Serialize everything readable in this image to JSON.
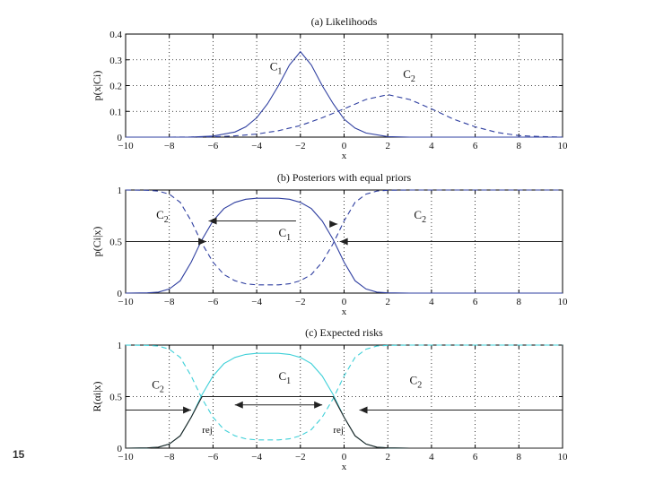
{
  "slide_number": "15",
  "chart_data": [
    {
      "type": "line",
      "title": "(a) Likelihoods",
      "xlabel": "x",
      "ylabel": "p(x|Ci)",
      "xlim": [
        -10,
        10
      ],
      "ylim": [
        0,
        0.4
      ],
      "xticks": [
        "−10",
        "−8",
        "−6",
        "−4",
        "−2",
        "0",
        "2",
        "4",
        "6",
        "8",
        "10"
      ],
      "yticks": [
        "0",
        "0.1",
        "0.2",
        "0.3",
        "0.4"
      ],
      "grid": true,
      "series": [
        {
          "name": "C1",
          "style": "solid",
          "color": "#2f3fa0",
          "x": [
            -10,
            -9,
            -8,
            -7,
            -6,
            -5,
            -4.5,
            -4,
            -3.5,
            -3,
            -2.5,
            -2,
            -1.5,
            -1,
            -0.5,
            0,
            0.5,
            1,
            2,
            3,
            4,
            5,
            6,
            7,
            8,
            9,
            10
          ],
          "y": [
            0,
            0,
            0,
            0.0005,
            0.004,
            0.02,
            0.04,
            0.075,
            0.13,
            0.2,
            0.28,
            0.332,
            0.28,
            0.2,
            0.13,
            0.07,
            0.035,
            0.016,
            0.002,
            0,
            0,
            0,
            0,
            0,
            0,
            0,
            0
          ]
        },
        {
          "name": "C2",
          "style": "dashed",
          "color": "#2f3fa0",
          "x": [
            -10,
            -8,
            -6,
            -5,
            -4,
            -3,
            -2,
            -1,
            0,
            1,
            2,
            3,
            4,
            5,
            6,
            7,
            8,
            9,
            10
          ],
          "y": [
            0,
            0,
            0.001,
            0.005,
            0.012,
            0.025,
            0.045,
            0.075,
            0.11,
            0.146,
            0.165,
            0.146,
            0.11,
            0.07,
            0.04,
            0.018,
            0.006,
            0.002,
            0
          ]
        }
      ],
      "labels": [
        {
          "text": "C1",
          "x": -3.4,
          "y": 0.26
        },
        {
          "text": "C2",
          "x": 2.7,
          "y": 0.23
        }
      ]
    },
    {
      "type": "line",
      "title": "(b) Posteriors with equal priors",
      "xlabel": "x",
      "ylabel": "p(Ci|x)",
      "xlim": [
        -10,
        10
      ],
      "ylim": [
        0,
        1
      ],
      "xticks": [
        "−10",
        "−8",
        "−6",
        "−4",
        "−2",
        "0",
        "2",
        "4",
        "6",
        "8",
        "10"
      ],
      "yticks": [
        "0",
        "0.5",
        "1"
      ],
      "grid": true,
      "series": [
        {
          "name": "C1",
          "style": "solid",
          "color": "#2f3fa0",
          "x": [
            -10,
            -9,
            -8.5,
            -8,
            -7.5,
            -7,
            -6.5,
            -6,
            -5.5,
            -5,
            -4.5,
            -4,
            -3.5,
            -3,
            -2.5,
            -2,
            -1.5,
            -1,
            -0.5,
            0,
            0.5,
            1,
            1.5,
            2,
            3,
            4,
            6,
            8,
            10
          ],
          "y": [
            0,
            0.003,
            0.01,
            0.04,
            0.12,
            0.3,
            0.52,
            0.7,
            0.82,
            0.88,
            0.91,
            0.92,
            0.92,
            0.92,
            0.91,
            0.88,
            0.82,
            0.7,
            0.52,
            0.3,
            0.12,
            0.04,
            0.01,
            0.003,
            0,
            0,
            0,
            0,
            0
          ]
        },
        {
          "name": "C2",
          "style": "dashed",
          "color": "#2f3fa0",
          "x": [
            -10,
            -9,
            -8.5,
            -8,
            -7.5,
            -7,
            -6.5,
            -6,
            -5.5,
            -5,
            -4.5,
            -4,
            -3.5,
            -3,
            -2.5,
            -2,
            -1.5,
            -1,
            -0.5,
            0,
            0.5,
            1,
            1.5,
            2,
            3,
            4,
            6,
            8,
            10
          ],
          "y": [
            1,
            0.997,
            0.99,
            0.96,
            0.88,
            0.7,
            0.48,
            0.3,
            0.18,
            0.12,
            0.09,
            0.08,
            0.08,
            0.08,
            0.09,
            0.12,
            0.18,
            0.3,
            0.48,
            0.7,
            0.88,
            0.96,
            0.99,
            0.997,
            1,
            1,
            1,
            1,
            1
          ]
        }
      ],
      "labels": [
        {
          "text": "C2",
          "x": -8.6,
          "y": 0.72
        },
        {
          "text": "C1",
          "x": -3.0,
          "y": 0.55
        },
        {
          "text": "C2",
          "x": 3.2,
          "y": 0.72
        }
      ]
    },
    {
      "type": "line",
      "title": "(c) Expected risks",
      "xlabel": "x",
      "ylabel": "R(αi|x)",
      "xlim": [
        -10,
        10
      ],
      "ylim": [
        0,
        1
      ],
      "xticks": [
        "−10",
        "−8",
        "−6",
        "−4",
        "−2",
        "0",
        "2",
        "4",
        "6",
        "8",
        "10"
      ],
      "yticks": [
        "0",
        "0.5",
        "1"
      ],
      "grid": true,
      "series": [
        {
          "name": "C1",
          "style": "dashed",
          "color": "#3fd0d8",
          "x": [
            -10,
            -9,
            -8.5,
            -8,
            -7.5,
            -7,
            -6.5,
            -6,
            -5.5,
            -5,
            -4.5,
            -4,
            -3.5,
            -3,
            -2.5,
            -2,
            -1.5,
            -1,
            -0.5,
            0,
            0.5,
            1,
            1.5,
            2,
            3,
            4,
            6,
            8,
            10
          ],
          "y": [
            1,
            0.997,
            0.99,
            0.96,
            0.88,
            0.7,
            0.48,
            0.3,
            0.18,
            0.12,
            0.09,
            0.08,
            0.08,
            0.08,
            0.09,
            0.12,
            0.18,
            0.3,
            0.48,
            0.7,
            0.88,
            0.96,
            0.99,
            0.997,
            1,
            1,
            1,
            1,
            1
          ]
        },
        {
          "name": "C2",
          "style": "solid",
          "color": "#3fd0d8",
          "x": [
            -10,
            -9,
            -8.5,
            -8,
            -7.5,
            -7,
            -6.5,
            -6,
            -5.5,
            -5,
            -4.5,
            -4,
            -3.5,
            -3,
            -2.5,
            -2,
            -1.5,
            -1,
            -0.5,
            0,
            0.5,
            1,
            1.5,
            2,
            3,
            4,
            6,
            8,
            10
          ],
          "y": [
            0,
            0.003,
            0.01,
            0.04,
            0.12,
            0.3,
            0.52,
            0.7,
            0.82,
            0.88,
            0.91,
            0.92,
            0.92,
            0.92,
            0.91,
            0.88,
            0.82,
            0.7,
            0.52,
            0.3,
            0.12,
            0.04,
            0.01,
            0.003,
            0,
            0,
            0,
            0,
            0
          ]
        },
        {
          "name": "rej",
          "style": "solid",
          "color": "#222222",
          "x": [
            -10,
            -9,
            -8.5,
            -8,
            -7.5,
            -7,
            -6.5,
            -6,
            -5.5,
            -5,
            -4.5,
            -4,
            -3.5,
            -3,
            -2.5,
            -2,
            -1.5,
            -1,
            -0.5,
            0,
            0.5,
            1,
            1.5,
            2,
            3,
            4,
            6,
            8,
            10
          ],
          "y": [
            0,
            0.003,
            0.01,
            0.04,
            0.12,
            0.3,
            0.5,
            0.5,
            0.5,
            0.5,
            0.5,
            0.5,
            0.5,
            0.5,
            0.5,
            0.5,
            0.5,
            0.5,
            0.5,
            0.3,
            0.12,
            0.04,
            0.01,
            0.003,
            0,
            0,
            0,
            0,
            0
          ]
        }
      ],
      "labels": [
        {
          "text": "C2",
          "x": -8.8,
          "y": 0.58
        },
        {
          "text": "C1",
          "x": -3.0,
          "y": 0.66
        },
        {
          "text": "C2",
          "x": 3.0,
          "y": 0.62
        },
        {
          "text": "rej",
          "x": -6.5,
          "y": 0.15
        },
        {
          "text": "rej",
          "x": -0.5,
          "y": 0.15
        }
      ]
    }
  ]
}
